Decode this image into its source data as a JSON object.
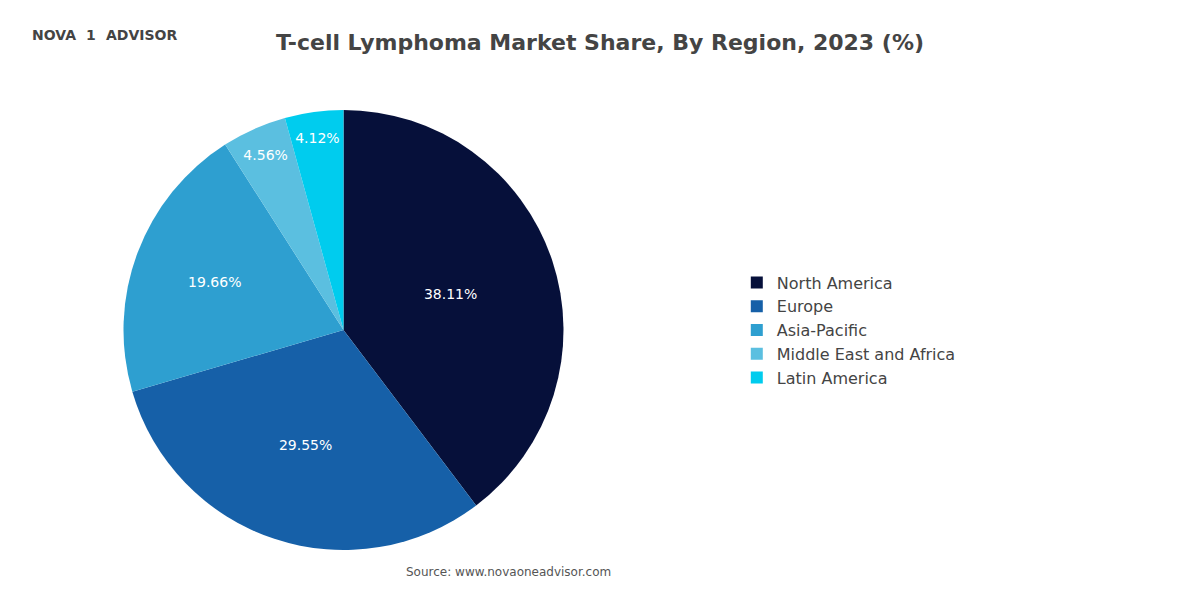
{
  "chart_data": {
    "type": "pie",
    "title": "T-cell Lymphoma Market Share, By Region, 2023 (%)",
    "categories": [
      "North America",
      "Europe",
      "Asia-Pacific",
      "Middle East and Africa",
      "Latin America"
    ],
    "values": [
      38.11,
      29.55,
      19.66,
      4.56,
      4.12
    ],
    "value_labels": [
      "38.11%",
      "29.55%",
      "19.66%",
      "4.56%",
      "4.12%"
    ],
    "data_labels": true,
    "colors": [
      "#06103a",
      "#1660a8",
      "#2e9fd0",
      "#5bbfe0",
      "#00ccee"
    ],
    "legend": "right",
    "annotations": [
      "NOVA",
      "1",
      "ADVISOR",
      "Source: www.novaoneadvisor.com"
    ]
  }
}
